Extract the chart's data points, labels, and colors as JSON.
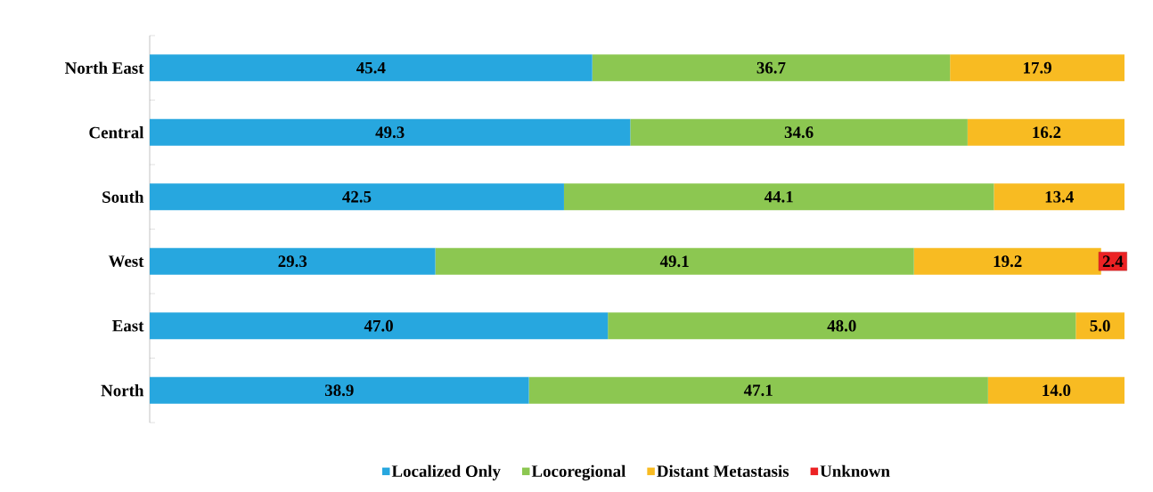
{
  "chart_data": {
    "type": "bar",
    "orientation": "horizontal",
    "stacked": true,
    "categories": [
      "North East",
      "Central",
      "South",
      "West",
      "East",
      "North"
    ],
    "series": [
      {
        "name": "Localized Only",
        "color": "#27a7df",
        "values": [
          45.4,
          49.3,
          42.5,
          29.3,
          47.0,
          38.9
        ],
        "value_labels": [
          "45.4",
          "49.3",
          "42.5",
          "29.3",
          "47.0",
          "38.9"
        ]
      },
      {
        "name": "Locoregional",
        "color": "#8cc751",
        "values": [
          36.7,
          34.6,
          44.1,
          49.1,
          48.0,
          47.1
        ],
        "value_labels": [
          "36.7",
          "34.6",
          "44.1",
          "49.1",
          "48.0",
          "47.1"
        ]
      },
      {
        "name": "Distant Metastasis",
        "color": "#f8bb22",
        "values": [
          17.9,
          16.2,
          13.4,
          19.2,
          5.0,
          14.0
        ],
        "value_labels": [
          "17.9",
          "16.2",
          "13.4",
          "19.2",
          "5.0",
          "14.0"
        ]
      },
      {
        "name": "Unknown",
        "color": "#ec2224",
        "values": [
          null,
          null,
          null,
          2.4,
          null,
          null
        ],
        "value_labels": [
          null,
          null,
          null,
          "2.4",
          null,
          null
        ]
      }
    ],
    "xlim": [
      0,
      100
    ],
    "legend": "bottom",
    "tick_labels": "y"
  }
}
